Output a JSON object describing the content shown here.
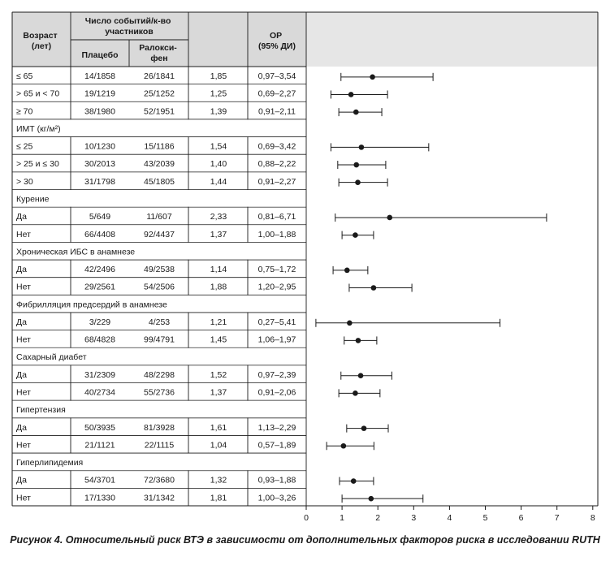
{
  "header": {
    "age_label": "Возраст (лет)",
    "events_label": "Число событий/к-во участников",
    "placebo_label": "Плацебо",
    "ralox_label": "Ралокси-фен",
    "or_label": "ОР (95% ДИ)"
  },
  "caption": "Рисунок 4. Относительный риск ВТЭ в зависимости от дополнительных факторов риска в исследовании RUTH",
  "chart_data": {
    "type": "forest",
    "xlim": [
      0,
      8
    ],
    "ticks": [
      0,
      1,
      2,
      3,
      4,
      5,
      6,
      7,
      8
    ],
    "rows": [
      {
        "kind": "data",
        "label": "≤ 65",
        "placebo": "14/1858",
        "ralox": "26/1841",
        "rr": "1,85",
        "ci": "0,97–3,54",
        "est": 1.85,
        "lo": 0.97,
        "hi": 3.54
      },
      {
        "kind": "data",
        "label": "> 65 и < 70",
        "placebo": "19/1219",
        "ralox": "25/1252",
        "rr": "1,25",
        "ci": "0,69–2,27",
        "est": 1.25,
        "lo": 0.69,
        "hi": 2.27
      },
      {
        "kind": "data",
        "label": "≥ 70",
        "placebo": "38/1980",
        "ralox": "52/1951",
        "rr": "1,39",
        "ci": "0,91–2,11",
        "est": 1.39,
        "lo": 0.91,
        "hi": 2.11
      },
      {
        "kind": "group",
        "label": "ИМТ (кг/м²)"
      },
      {
        "kind": "data",
        "label": "≤ 25",
        "placebo": "10/1230",
        "ralox": "15/1186",
        "rr": "1,54",
        "ci": "0,69–3,42",
        "est": 1.54,
        "lo": 0.69,
        "hi": 3.42
      },
      {
        "kind": "data",
        "label": "> 25 и ≤ 30",
        "placebo": "30/2013",
        "ralox": "43/2039",
        "rr": "1,40",
        "ci": "0,88–2,22",
        "est": 1.4,
        "lo": 0.88,
        "hi": 2.22
      },
      {
        "kind": "data",
        "label": "> 30",
        "placebo": "31/1798",
        "ralox": "45/1805",
        "rr": "1,44",
        "ci": "0,91–2,27",
        "est": 1.44,
        "lo": 0.91,
        "hi": 2.27
      },
      {
        "kind": "group",
        "label": "Курение"
      },
      {
        "kind": "data",
        "label": "Да",
        "placebo": "5/649",
        "ralox": "11/607",
        "rr": "2,33",
        "ci": "0,81–6,71",
        "est": 2.33,
        "lo": 0.81,
        "hi": 6.71
      },
      {
        "kind": "data",
        "label": "Нет",
        "placebo": "66/4408",
        "ralox": "92/4437",
        "rr": "1,37",
        "ci": "1,00–1,88",
        "est": 1.37,
        "lo": 1.0,
        "hi": 1.88
      },
      {
        "kind": "group",
        "label": "Хроническая ИБС в анамнезе"
      },
      {
        "kind": "data",
        "label": "Да",
        "placebo": "42/2496",
        "ralox": "49/2538",
        "rr": "1,14",
        "ci": "0,75–1,72",
        "est": 1.14,
        "lo": 0.75,
        "hi": 1.72
      },
      {
        "kind": "data",
        "label": "Нет",
        "placebo": "29/2561",
        "ralox": "54/2506",
        "rr": "1,88",
        "ci": "1,20–2,95",
        "est": 1.88,
        "lo": 1.2,
        "hi": 2.95
      },
      {
        "kind": "group",
        "label": "Фибрилляция предсердий в анамнезе"
      },
      {
        "kind": "data",
        "label": "Да",
        "placebo": "3/229",
        "ralox": "4/253",
        "rr": "1,21",
        "ci": "0,27–5,41",
        "est": 1.21,
        "lo": 0.27,
        "hi": 5.41
      },
      {
        "kind": "data",
        "label": "Нет",
        "placebo": "68/4828",
        "ralox": "99/4791",
        "rr": "1,45",
        "ci": "1,06–1,97",
        "est": 1.45,
        "lo": 1.06,
        "hi": 1.97
      },
      {
        "kind": "group",
        "label": "Сахарный диабет"
      },
      {
        "kind": "data",
        "label": "Да",
        "placebo": "31/2309",
        "ralox": "48/2298",
        "rr": "1,52",
        "ci": "0,97–2,39",
        "est": 1.52,
        "lo": 0.97,
        "hi": 2.39
      },
      {
        "kind": "data",
        "label": "Нет",
        "placebo": "40/2734",
        "ralox": "55/2736",
        "rr": "1,37",
        "ci": "0,91–2,06",
        "est": 1.37,
        "lo": 0.91,
        "hi": 2.06
      },
      {
        "kind": "group",
        "label": "Гипертензия"
      },
      {
        "kind": "data",
        "label": "Да",
        "placebo": "50/3935",
        "ralox": "81/3928",
        "rr": "1,61",
        "ci": "1,13–2,29",
        "est": 1.61,
        "lo": 1.13,
        "hi": 2.29
      },
      {
        "kind": "data",
        "label": "Нет",
        "placebo": "21/1121",
        "ralox": "22/1115",
        "rr": "1,04",
        "ci": "0,57–1,89",
        "est": 1.04,
        "lo": 0.57,
        "hi": 1.89
      },
      {
        "kind": "group",
        "label": "Гиперлипидемия"
      },
      {
        "kind": "data",
        "label": "Да",
        "placebo": "54/3701",
        "ralox": "72/3680",
        "rr": "1,32",
        "ci": "0,93–1,88",
        "est": 1.32,
        "lo": 0.93,
        "hi": 1.88
      },
      {
        "kind": "data",
        "label": "Нет",
        "placebo": "17/1330",
        "ralox": "31/1342",
        "rr": "1,81",
        "ci": "1,00–3,26",
        "est": 1.81,
        "lo": 1.0,
        "hi": 3.26
      }
    ]
  }
}
